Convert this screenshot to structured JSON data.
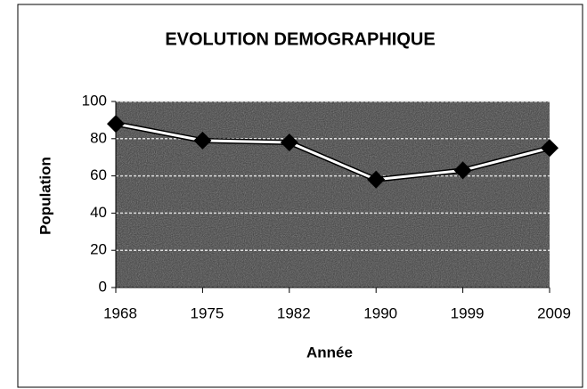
{
  "chart_data": {
    "type": "line",
    "title": "EVOLUTION DEMOGRAPHIQUE",
    "x_label": "Année",
    "y_label": "Population",
    "categories": [
      "1968",
      "1975",
      "1982",
      "1990",
      "1999",
      "2009"
    ],
    "series": [
      {
        "name": "Population",
        "color": "#ffffff",
        "values": [
          88,
          79,
          78,
          58,
          63,
          75
        ]
      }
    ],
    "ylim": [
      0,
      100
    ],
    "yticks": [
      0,
      20,
      40,
      60,
      80,
      100
    ],
    "grid": true
  }
}
